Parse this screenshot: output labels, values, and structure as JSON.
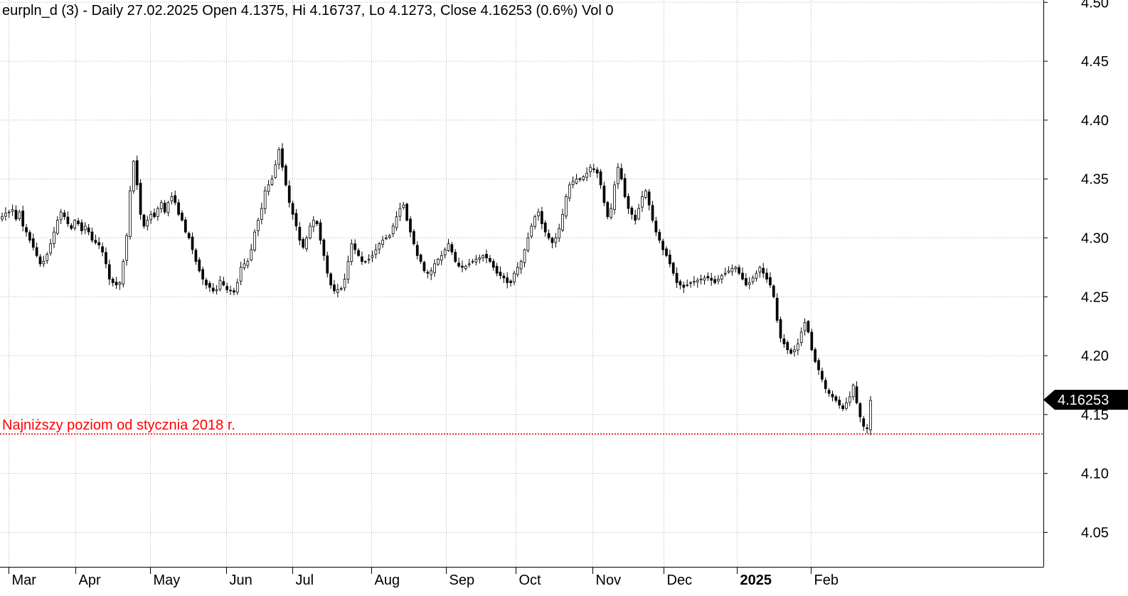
{
  "chart_data": {
    "type": "candlestick",
    "title": "eurpln_d (3) - Daily 27.02.2025 Open 4.1375, Hi 4.16737, Lo 4.1273, Close 4.16253 (0.6%) Vol 0",
    "ylim": [
      4.02,
      4.5
    ],
    "y_ticks": [
      "4.05",
      "4.10",
      "4.15",
      "4.20",
      "4.25",
      "4.30",
      "4.35",
      "4.40",
      "4.45",
      "4.50"
    ],
    "x_ticks": [
      "Mar",
      "Apr",
      "May",
      "Jun",
      "Jul",
      "Aug",
      "Sep",
      "Oct",
      "Nov",
      "Dec",
      "2025",
      "Feb"
    ],
    "grid": true,
    "last_price": "4.16253",
    "annotation": {
      "text": "Najniższy poziom od stycznia 2018 r.",
      "level": 4.1335,
      "color": "#ff0000"
    },
    "series": [
      {
        "values": [
          4.318,
          4.321,
          4.322,
          4.324,
          4.316,
          4.322,
          4.31,
          4.305,
          4.298,
          4.292,
          4.285,
          4.278,
          4.28,
          4.286,
          4.295,
          4.305,
          4.315,
          4.322,
          4.318,
          4.312,
          4.308,
          4.315,
          4.312,
          4.306,
          4.31,
          4.305,
          4.298,
          4.296,
          4.294,
          4.288,
          4.278,
          4.265,
          4.262,
          4.26,
          4.262,
          4.28,
          4.302,
          4.34,
          4.365,
          4.345,
          4.32,
          4.31,
          4.315,
          4.32,
          4.318,
          4.325,
          4.33,
          4.322,
          4.33,
          4.335,
          4.33,
          4.32,
          4.315,
          4.305,
          4.3,
          4.29,
          4.28,
          4.272,
          4.265,
          4.26,
          4.258,
          4.255,
          4.256,
          4.264,
          4.26,
          4.256,
          4.255,
          4.254,
          4.262,
          4.275,
          4.278,
          4.28,
          4.29,
          4.305,
          4.315,
          4.325,
          4.34,
          4.345,
          4.35,
          4.362,
          4.375,
          4.36,
          4.345,
          4.33,
          4.32,
          4.31,
          4.298,
          4.292,
          4.3,
          4.31,
          4.315,
          4.312,
          4.298,
          4.285,
          4.27,
          4.26,
          4.255,
          4.256,
          4.257,
          4.265,
          4.28,
          4.295,
          4.29,
          4.285,
          4.28,
          4.28,
          4.282,
          4.285,
          4.29,
          4.295,
          4.298,
          4.3,
          4.302,
          4.31,
          4.318,
          4.325,
          4.328,
          4.315,
          4.305,
          4.295,
          4.285,
          4.28,
          4.272,
          4.27,
          4.272,
          4.278,
          4.282,
          4.285,
          4.29,
          4.295,
          4.288,
          4.28,
          4.276,
          4.275,
          4.276,
          4.278,
          4.28,
          4.282,
          4.283,
          4.285,
          4.283,
          4.28,
          4.275,
          4.27,
          4.268,
          4.266,
          4.262,
          4.262,
          4.27,
          4.275,
          4.28,
          4.29,
          4.3,
          4.31,
          4.318,
          4.322,
          4.312,
          4.305,
          4.3,
          4.296,
          4.3,
          4.308,
          4.32,
          4.335,
          4.345,
          4.348,
          4.35,
          4.35,
          4.352,
          4.355,
          4.36,
          4.358,
          4.355,
          4.345,
          4.33,
          4.318,
          4.325,
          4.345,
          4.36,
          4.35,
          4.335,
          4.325,
          4.32,
          4.315,
          4.325,
          4.335,
          4.34,
          4.328,
          4.315,
          4.305,
          4.298,
          4.29,
          4.285,
          4.278,
          4.27,
          4.262,
          4.26,
          4.258,
          4.26,
          4.262,
          4.263,
          4.264,
          4.265,
          4.266,
          4.266,
          4.264,
          4.262,
          4.265,
          4.268,
          4.27,
          4.272,
          4.274,
          4.275,
          4.27,
          4.265,
          4.26,
          4.262,
          4.266,
          4.27,
          4.275,
          4.27,
          4.265,
          4.26,
          4.25,
          4.23,
          4.215,
          4.21,
          4.205,
          4.202,
          4.205,
          4.21,
          4.22,
          4.228,
          4.22,
          4.205,
          4.195,
          4.188,
          4.18,
          4.172,
          4.168,
          4.165,
          4.162,
          4.158,
          4.155,
          4.16,
          4.165,
          4.175,
          4.16,
          4.148,
          4.14,
          4.138,
          4.162
        ]
      }
    ]
  }
}
